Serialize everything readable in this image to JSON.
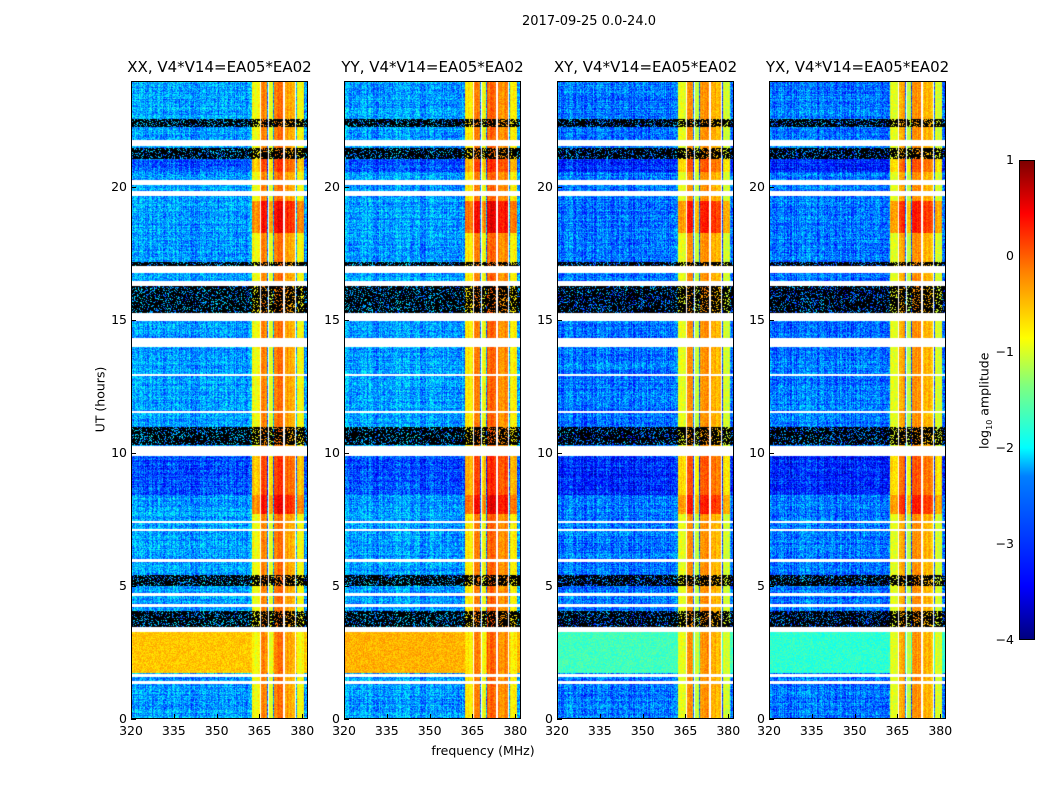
{
  "figure": {
    "title": "2017-09-25 0.0-24.0",
    "ylabel": "UT (hours)",
    "xlabel": "frequency (MHz)",
    "colorbar_label_prefix": "log",
    "colorbar_label_sub": "10",
    "colorbar_label_suffix": " amplitude"
  },
  "chart_data": {
    "type": "heatmap",
    "title": "2017-09-25 0.0-24.0",
    "xlabel": "frequency (MHz)",
    "ylabel": "UT (hours)",
    "xlim": [
      320,
      382
    ],
    "ylim": [
      0,
      24
    ],
    "xticks": [
      320,
      335,
      350,
      365,
      380
    ],
    "yticks": [
      0,
      5,
      10,
      15,
      20
    ],
    "colormap": "jet",
    "clim": [
      -4,
      1
    ],
    "colorbar_ticks": [
      1,
      0,
      -1,
      -2,
      -3,
      -4
    ],
    "colorbar_label": "log10 amplitude",
    "rfi_band_mhz": [
      362.5,
      381
    ],
    "rfi_subbands": [
      [
        362.5,
        365.2,
        -0.9
      ],
      [
        365.8,
        368,
        -0.3
      ],
      [
        368.5,
        370,
        -1.0
      ],
      [
        370.2,
        373.5,
        -0.2
      ],
      [
        374,
        377.8,
        -0.4
      ],
      [
        378.3,
        381,
        -0.9
      ]
    ],
    "flagged_channels_mhz": [
      365.5,
      368.3,
      373.8,
      378.0
    ],
    "time_segments": [
      {
        "t": [
          1.3,
          1.4
        ],
        "kind": "flag"
      },
      {
        "t": [
          1.55,
          1.65
        ],
        "kind": "flag"
      },
      {
        "t": [
          1.7,
          3.25
        ],
        "kind": "bright"
      },
      {
        "t": [
          3.25,
          3.45
        ],
        "kind": "flag"
      },
      {
        "t": [
          3.45,
          4.05
        ],
        "kind": "dense"
      },
      {
        "t": [
          4.2,
          4.3
        ],
        "kind": "flag"
      },
      {
        "t": [
          4.6,
          4.7
        ],
        "kind": "flag"
      },
      {
        "t": [
          5.0,
          5.4
        ],
        "kind": "dense"
      },
      {
        "t": [
          5.9,
          6.0
        ],
        "kind": "flag"
      },
      {
        "t": [
          7.05,
          7.15
        ],
        "kind": "flag"
      },
      {
        "t": [
          7.35,
          7.45
        ],
        "kind": "flag"
      },
      {
        "t": [
          7.7,
          8.4
        ],
        "kind": "hot"
      },
      {
        "t": [
          8.4,
          9.9
        ],
        "kind": "dark"
      },
      {
        "t": [
          9.9,
          10.25
        ],
        "kind": "flag"
      },
      {
        "t": [
          10.3,
          11.0
        ],
        "kind": "dense"
      },
      {
        "t": [
          11.5,
          11.6
        ],
        "kind": "flag"
      },
      {
        "t": [
          12.9,
          13.0
        ],
        "kind": "flag"
      },
      {
        "t": [
          14.0,
          14.35
        ],
        "kind": "flag"
      },
      {
        "t": [
          15.0,
          15.3
        ],
        "kind": "flag"
      },
      {
        "t": [
          15.3,
          16.3
        ],
        "kind": "dense"
      },
      {
        "t": [
          16.3,
          16.5
        ],
        "kind": "flag"
      },
      {
        "t": [
          16.8,
          17.05
        ],
        "kind": "flag"
      },
      {
        "t": [
          17.05,
          17.2
        ],
        "kind": "dense"
      },
      {
        "t": [
          18.3,
          19.5
        ],
        "kind": "hot"
      },
      {
        "t": [
          19.7,
          19.9
        ],
        "kind": "flag"
      },
      {
        "t": [
          20.1,
          20.3
        ],
        "kind": "flag"
      },
      {
        "t": [
          20.6,
          21.1
        ],
        "kind": "dark"
      },
      {
        "t": [
          21.1,
          21.5
        ],
        "kind": "dense"
      },
      {
        "t": [
          21.6,
          21.8
        ],
        "kind": "flag"
      },
      {
        "t": [
          22.3,
          22.6
        ],
        "kind": "dense"
      }
    ],
    "panels": [
      {
        "title": "XX, V4*V14=EA05*EA02",
        "background": -2.6,
        "bright_level": -0.6,
        "rfi_offset": 0.0
      },
      {
        "title": "YY, V4*V14=EA05*EA02",
        "background": -2.6,
        "bright_level": -0.5,
        "rfi_offset": 0.1
      },
      {
        "title": "XY, V4*V14=EA05*EA02",
        "background": -2.8,
        "bright_level": -1.8,
        "rfi_offset": -0.1
      },
      {
        "title": "YX, V4*V14=EA05*EA02",
        "background": -2.8,
        "bright_level": -1.9,
        "rfi_offset": -0.15
      }
    ]
  }
}
